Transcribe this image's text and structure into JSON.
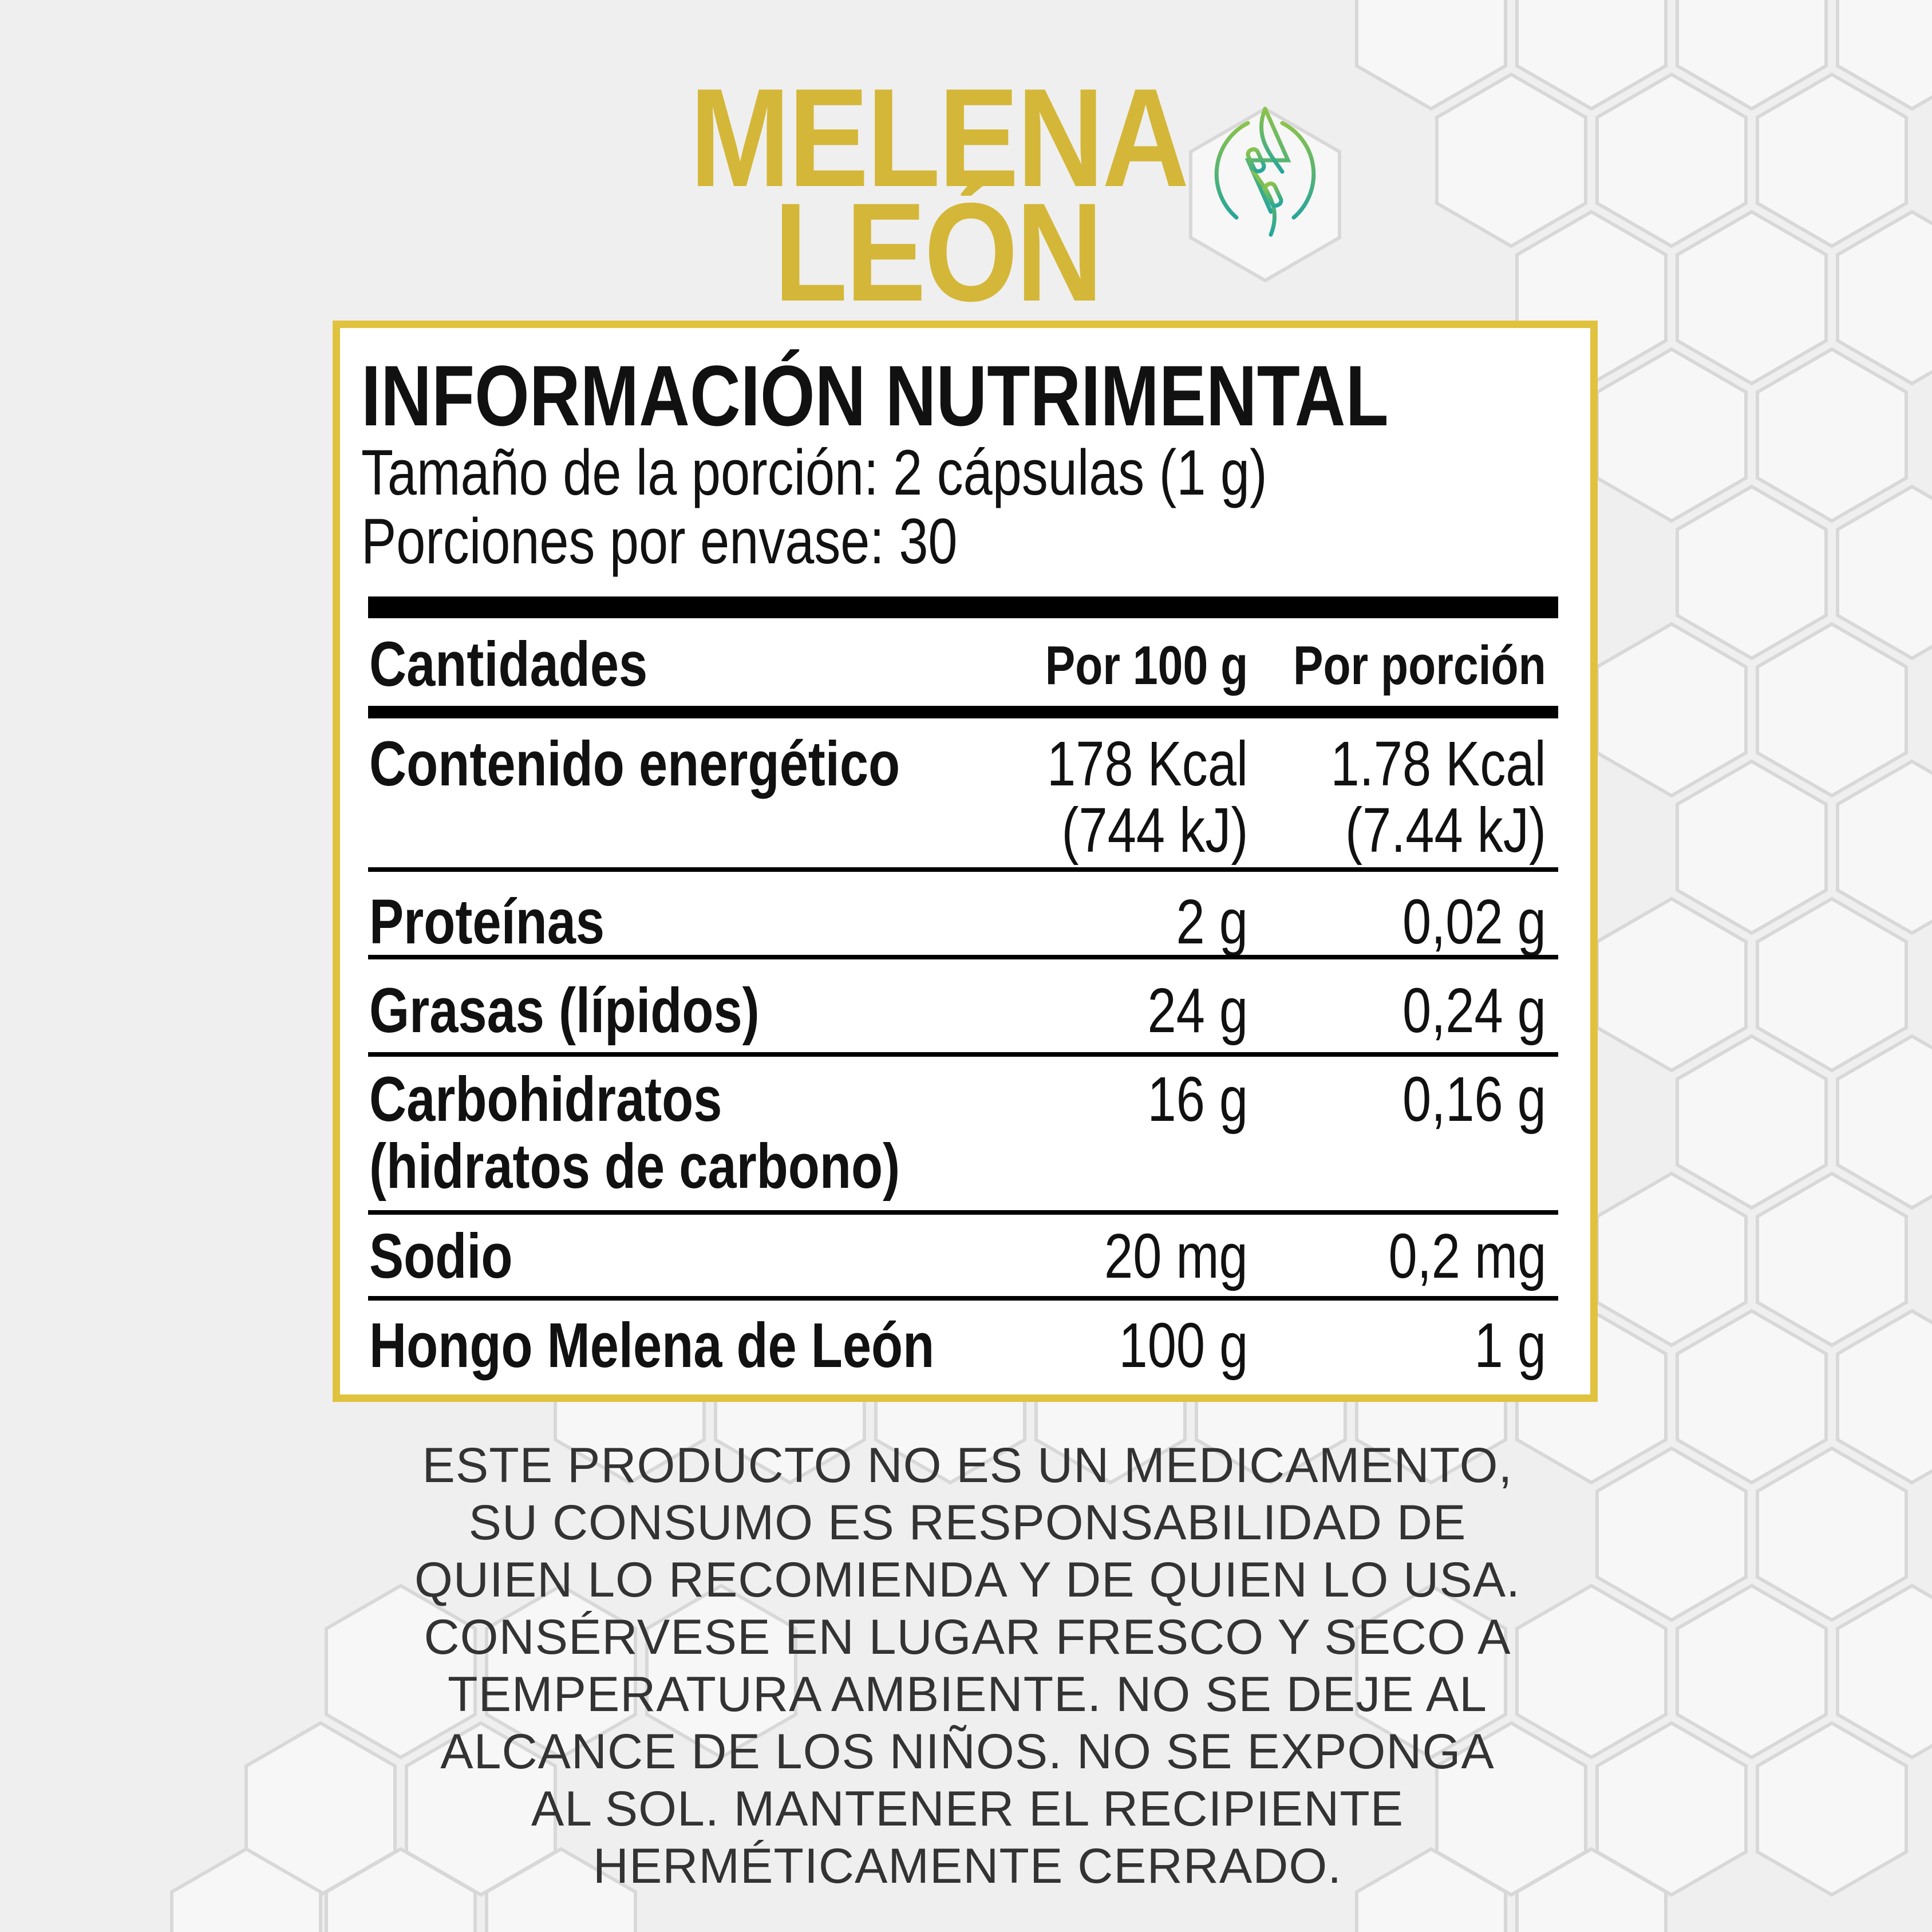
{
  "brand": {
    "title_line1": "MELENA",
    "title_line2": "LEÓN",
    "title_color": "#d4b738",
    "logo_icon": "leaf-n-circle-logo",
    "logo_color": "#5cb85c"
  },
  "nutrition": {
    "heading": "INFORMACIÓN NUTRIMENTAL",
    "serving_size": "Tamaño de la porción: 2 cápsulas (1 g)",
    "servings_per_container": "Porciones por envase: 30",
    "columns": [
      "Cantidades",
      "Por 100 g",
      "Por porción"
    ],
    "rows": [
      {
        "label": [
          "Contenido energético"
        ],
        "per100": [
          "178 Kcal",
          "(744 kJ)"
        ],
        "perServing": [
          "1.78 Kcal",
          "(7.44 kJ)"
        ]
      },
      {
        "label": [
          "Proteínas"
        ],
        "per100": [
          "2 g"
        ],
        "perServing": [
          "0,02 g"
        ]
      },
      {
        "label": [
          "Grasas (lípidos)"
        ],
        "per100": [
          "24 g"
        ],
        "perServing": [
          "0,24 g"
        ]
      },
      {
        "label": [
          "Carbohidratos",
          "(hidratos de carbono)"
        ],
        "per100": [
          "16 g"
        ],
        "perServing": [
          "0,16 g"
        ]
      },
      {
        "label": [
          "Sodio"
        ],
        "per100": [
          "20 mg"
        ],
        "perServing": [
          "0,2 mg"
        ]
      },
      {
        "label": [
          "Hongo Melena de León"
        ],
        "per100": [
          "100 g"
        ],
        "perServing": [
          "1 g"
        ]
      }
    ],
    "border_color": "#e0c23e"
  },
  "disclaimer": [
    "ESTE PRODUCTO NO ES UN MEDICAMENTO,",
    "SU CONSUMO ES RESPONSABILIDAD DE",
    "QUIEN LO RECOMIENDA Y DE QUIEN LO USA.",
    "CONSÉRVESE EN LUGAR FRESCO Y SECO A",
    "TEMPERATURA AMBIENTE. NO SE DEJE AL",
    "ALCANCE DE LOS NIÑOS. NO SE EXPONGA",
    "AL SOL. MANTENER EL RECIPIENTE",
    "HERMÉTICAMENTE CERRADO."
  ]
}
